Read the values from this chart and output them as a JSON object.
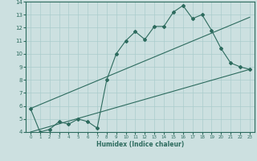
{
  "xlabel": "Humidex (Indice chaleur)",
  "bg_color": "#cce0e0",
  "line_color": "#2d6b5e",
  "grid_color": "#aacccc",
  "xlim": [
    -0.5,
    23.5
  ],
  "ylim": [
    4,
    14
  ],
  "x_ticks": [
    0,
    1,
    2,
    3,
    4,
    5,
    6,
    7,
    8,
    9,
    10,
    11,
    12,
    13,
    14,
    15,
    16,
    17,
    18,
    19,
    20,
    21,
    22,
    23
  ],
  "y_ticks": [
    4,
    5,
    6,
    7,
    8,
    9,
    10,
    11,
    12,
    13,
    14
  ],
  "line1_x": [
    0,
    1,
    2,
    3,
    4,
    5,
    6,
    7,
    8,
    9,
    10,
    11,
    12,
    13,
    14,
    15,
    16,
    17,
    18,
    19,
    20,
    21,
    22,
    23
  ],
  "line1_y": [
    5.8,
    4.0,
    4.2,
    4.8,
    4.6,
    5.0,
    4.8,
    4.3,
    8.0,
    10.0,
    11.0,
    11.7,
    11.1,
    12.1,
    12.1,
    13.2,
    13.7,
    12.7,
    13.0,
    11.8,
    10.4,
    9.3,
    9.0,
    8.8
  ],
  "line2_x": [
    0,
    23
  ],
  "line2_y": [
    5.8,
    12.8
  ],
  "line3_x": [
    0,
    23
  ],
  "line3_y": [
    4.0,
    8.8
  ]
}
